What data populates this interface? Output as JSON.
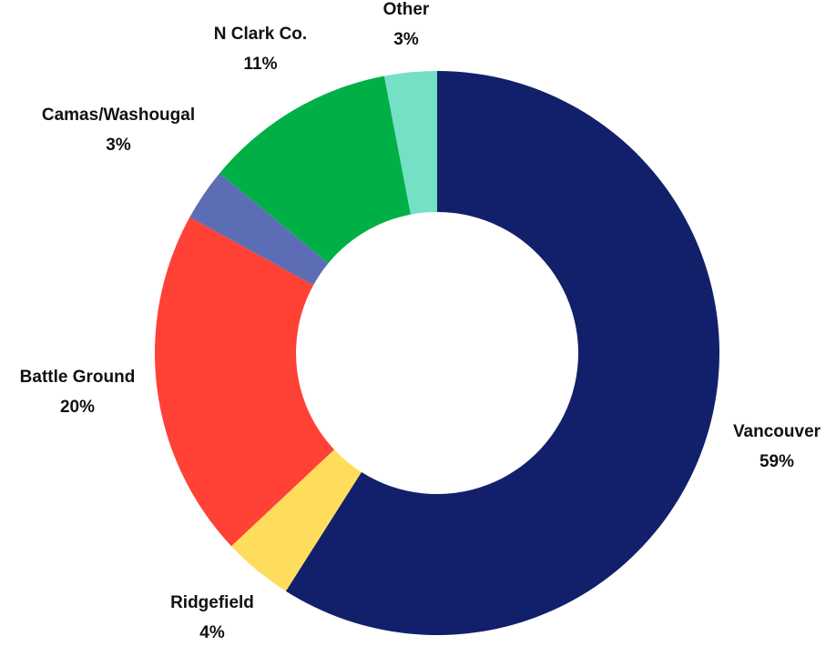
{
  "chart_data": {
    "type": "pie",
    "variant": "donut",
    "start_angle_deg": 0,
    "direction": "clockwise",
    "slices": [
      {
        "label": "Vancouver",
        "value": 59,
        "value_label": "59%",
        "color": "#12206b"
      },
      {
        "label": "Ridgefield",
        "value": 4,
        "value_label": "4%",
        "color": "#ffdd5c"
      },
      {
        "label": "Battle Ground",
        "value": 20,
        "value_label": "20%",
        "color": "#ff4136"
      },
      {
        "label": "Camas/Washougal",
        "value": 3,
        "value_label": "3%",
        "color": "#5d6db5"
      },
      {
        "label": "N Clark Co.",
        "value": 11,
        "value_label": "11%",
        "color": "#00b047"
      },
      {
        "label": "Other",
        "value": 3,
        "value_label": "3%",
        "color": "#74e0c4"
      }
    ]
  }
}
